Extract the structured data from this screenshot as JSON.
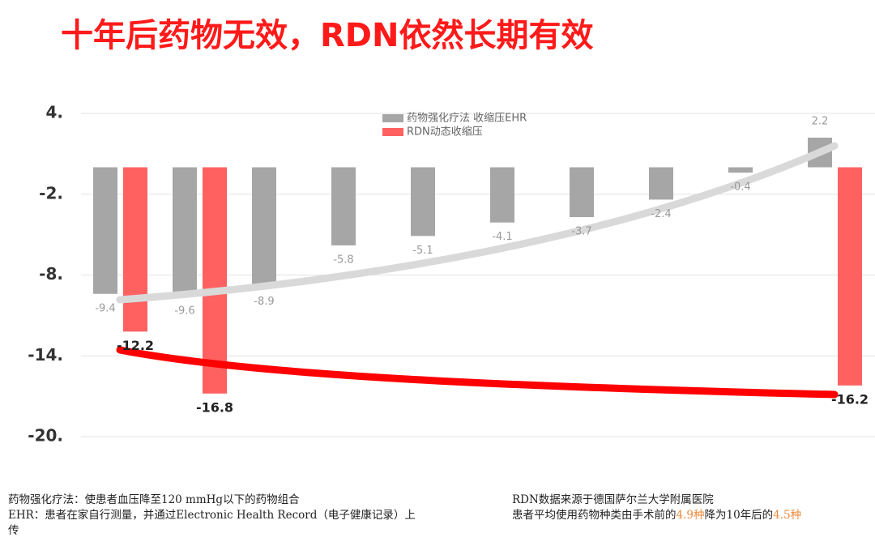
{
  "chart_data": {
    "type": "bar",
    "title": "十年后药物无效，RDN依然长期有效",
    "categories": [
      null,
      null,
      null,
      null,
      null,
      null,
      null,
      null,
      null,
      null
    ],
    "series": [
      {
        "name": "药物强化疗法 收缩压EHR",
        "color": "#a6a6a6",
        "values": [
          -9.4,
          -9.6,
          -8.9,
          -5.8,
          -5.1,
          -4.1,
          -3.7,
          -2.4,
          -0.4,
          2.2
        ]
      },
      {
        "name": "RDN动态收缩压",
        "color": "#ff6161",
        "values": [
          -12.2,
          -16.8,
          null,
          null,
          null,
          null,
          null,
          null,
          null,
          -16.2
        ]
      }
    ],
    "ylim": [
      -20,
      4
    ],
    "yticks": [
      {
        "value": 4,
        "label": "4."
      },
      {
        "value": -2,
        "label": "-2."
      },
      {
        "value": -8,
        "label": "-8."
      },
      {
        "value": -14,
        "label": "-14."
      },
      {
        "value": -20,
        "label": "-20."
      }
    ],
    "grid": true,
    "legend": "top"
  },
  "notes": {
    "left": [
      "药物强化疗法：使患者血压降至120 mmHg以下的药物组合",
      "EHR：患者在家自行测量，并通过Electronic Health Record（电子健康记录）上",
      "传"
    ],
    "right": [
      "RDN数据来源于德国萨尔兰大学附属医院",
      "患者平均使用药物种类由手术前的",
      "4.9种",
      "降为10年后的",
      "4.5种"
    ]
  }
}
